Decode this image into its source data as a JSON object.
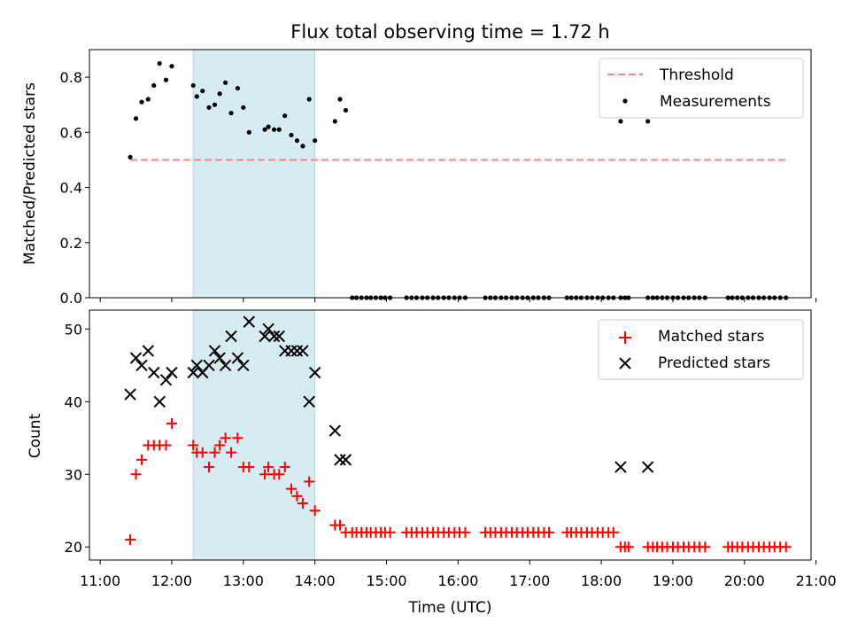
{
  "chart_data": [
    {
      "type": "scatter",
      "title": "Flux total observing time = 1.72 h",
      "xlabel": "",
      "ylabel": "Matched/Predicted stars",
      "xlim": [
        10.85,
        20.93
      ],
      "ylim": [
        0,
        0.9
      ],
      "yticks": [
        "0.0",
        "0.2",
        "0.4",
        "0.6",
        "0.8"
      ],
      "shaded_span": [
        12.3,
        14.0
      ],
      "threshold": {
        "name": "Threshold",
        "value": 0.5,
        "x_range": [
          11.42,
          20.58
        ],
        "color": "#ff8080"
      },
      "series": [
        {
          "name": "Measurements",
          "marker": "dot",
          "color": "#000000",
          "points": [
            [
              11.42,
              0.51
            ],
            [
              11.5,
              0.65
            ],
            [
              11.58,
              0.71
            ],
            [
              11.67,
              0.72
            ],
            [
              11.75,
              0.77
            ],
            [
              11.83,
              0.85
            ],
            [
              11.92,
              0.79
            ],
            [
              12.0,
              0.84
            ],
            [
              12.3,
              0.77
            ],
            [
              12.35,
              0.73
            ],
            [
              12.43,
              0.75
            ],
            [
              12.52,
              0.69
            ],
            [
              12.6,
              0.7
            ],
            [
              12.67,
              0.74
            ],
            [
              12.75,
              0.78
            ],
            [
              12.83,
              0.67
            ],
            [
              12.92,
              0.76
            ],
            [
              13.0,
              0.69
            ],
            [
              13.08,
              0.6
            ],
            [
              13.3,
              0.61
            ],
            [
              13.35,
              0.62
            ],
            [
              13.43,
              0.61
            ],
            [
              13.5,
              0.61
            ],
            [
              13.58,
              0.66
            ],
            [
              13.67,
              0.59
            ],
            [
              13.75,
              0.57
            ],
            [
              13.83,
              0.55
            ],
            [
              13.92,
              0.72
            ],
            [
              14.0,
              0.57
            ],
            [
              14.28,
              0.64
            ],
            [
              14.35,
              0.72
            ],
            [
              14.43,
              0.68
            ],
            [
              18.27,
              0.64
            ],
            [
              18.65,
              0.64
            ],
            [
              14.52,
              0
            ],
            [
              14.58,
              0
            ],
            [
              14.65,
              0
            ],
            [
              14.72,
              0
            ],
            [
              14.78,
              0
            ],
            [
              14.85,
              0
            ],
            [
              14.92,
              0
            ],
            [
              14.98,
              0
            ],
            [
              15.05,
              0
            ],
            [
              15.28,
              0
            ],
            [
              15.35,
              0
            ],
            [
              15.42,
              0
            ],
            [
              15.5,
              0
            ],
            [
              15.57,
              0
            ],
            [
              15.65,
              0
            ],
            [
              15.72,
              0
            ],
            [
              15.8,
              0
            ],
            [
              15.87,
              0
            ],
            [
              15.95,
              0
            ],
            [
              16.02,
              0
            ],
            [
              16.1,
              0
            ],
            [
              16.38,
              0
            ],
            [
              16.45,
              0
            ],
            [
              16.52,
              0
            ],
            [
              16.6,
              0
            ],
            [
              16.67,
              0
            ],
            [
              16.75,
              0
            ],
            [
              16.82,
              0
            ],
            [
              16.9,
              0
            ],
            [
              16.97,
              0
            ],
            [
              17.05,
              0
            ],
            [
              17.12,
              0
            ],
            [
              17.2,
              0
            ],
            [
              17.27,
              0
            ],
            [
              17.52,
              0
            ],
            [
              17.58,
              0
            ],
            [
              17.65,
              0
            ],
            [
              17.72,
              0
            ],
            [
              17.8,
              0
            ],
            [
              17.87,
              0
            ],
            [
              17.95,
              0
            ],
            [
              18.02,
              0
            ],
            [
              18.1,
              0
            ],
            [
              18.17,
              0
            ],
            [
              18.27,
              0
            ],
            [
              18.33,
              0
            ],
            [
              18.38,
              0
            ],
            [
              18.65,
              0
            ],
            [
              18.72,
              0
            ],
            [
              18.78,
              0
            ],
            [
              18.85,
              0
            ],
            [
              18.92,
              0
            ],
            [
              19.0,
              0
            ],
            [
              19.07,
              0
            ],
            [
              19.15,
              0
            ],
            [
              19.22,
              0
            ],
            [
              19.3,
              0
            ],
            [
              19.37,
              0
            ],
            [
              19.45,
              0
            ],
            [
              19.77,
              0
            ],
            [
              19.83,
              0
            ],
            [
              19.9,
              0
            ],
            [
              19.97,
              0
            ],
            [
              20.05,
              0
            ],
            [
              20.12,
              0
            ],
            [
              20.2,
              0
            ],
            [
              20.27,
              0
            ],
            [
              20.35,
              0
            ],
            [
              20.42,
              0
            ],
            [
              20.5,
              0
            ],
            [
              20.58,
              0
            ]
          ]
        }
      ],
      "legend": {
        "position": "top-right"
      }
    },
    {
      "type": "scatter",
      "title": "",
      "xlabel": "Time (UTC)",
      "ylabel": "Count",
      "xlim": [
        10.85,
        20.93
      ],
      "ylim": [
        18.2,
        52.6
      ],
      "yticks": [
        "20",
        "30",
        "40",
        "50"
      ],
      "xticks": [
        "11:00",
        "12:00",
        "13:00",
        "14:00",
        "15:00",
        "16:00",
        "17:00",
        "18:00",
        "19:00",
        "20:00",
        "21:00"
      ],
      "shaded_span": [
        12.3,
        14.0
      ],
      "series": [
        {
          "name": "Matched stars",
          "marker": "plus",
          "color": "#ff0000",
          "points": [
            [
              11.42,
              21
            ],
            [
              11.5,
              30
            ],
            [
              11.58,
              32
            ],
            [
              11.67,
              34
            ],
            [
              11.75,
              34
            ],
            [
              11.83,
              34
            ],
            [
              11.92,
              34
            ],
            [
              12.0,
              37
            ],
            [
              12.3,
              34
            ],
            [
              12.35,
              33
            ],
            [
              12.43,
              33
            ],
            [
              12.52,
              31
            ],
            [
              12.6,
              33
            ],
            [
              12.67,
              34
            ],
            [
              12.75,
              35
            ],
            [
              12.83,
              33
            ],
            [
              12.92,
              35
            ],
            [
              13.0,
              31
            ],
            [
              13.08,
              31
            ],
            [
              13.3,
              30
            ],
            [
              13.35,
              31
            ],
            [
              13.43,
              30
            ],
            [
              13.5,
              30
            ],
            [
              13.58,
              31
            ],
            [
              13.67,
              28
            ],
            [
              13.75,
              27
            ],
            [
              13.83,
              26
            ],
            [
              13.92,
              29
            ],
            [
              14.0,
              25
            ],
            [
              14.28,
              23
            ],
            [
              14.35,
              23
            ],
            [
              14.43,
              22
            ],
            [
              14.52,
              22
            ],
            [
              14.58,
              22
            ],
            [
              14.65,
              22
            ],
            [
              14.72,
              22
            ],
            [
              14.78,
              22
            ],
            [
              14.85,
              22
            ],
            [
              14.92,
              22
            ],
            [
              14.98,
              22
            ],
            [
              15.05,
              22
            ],
            [
              15.28,
              22
            ],
            [
              15.35,
              22
            ],
            [
              15.42,
              22
            ],
            [
              15.5,
              22
            ],
            [
              15.57,
              22
            ],
            [
              15.65,
              22
            ],
            [
              15.72,
              22
            ],
            [
              15.8,
              22
            ],
            [
              15.87,
              22
            ],
            [
              15.95,
              22
            ],
            [
              16.02,
              22
            ],
            [
              16.1,
              22
            ],
            [
              16.38,
              22
            ],
            [
              16.45,
              22
            ],
            [
              16.52,
              22
            ],
            [
              16.6,
              22
            ],
            [
              16.67,
              22
            ],
            [
              16.75,
              22
            ],
            [
              16.82,
              22
            ],
            [
              16.9,
              22
            ],
            [
              16.97,
              22
            ],
            [
              17.05,
              22
            ],
            [
              17.12,
              22
            ],
            [
              17.2,
              22
            ],
            [
              17.27,
              22
            ],
            [
              17.52,
              22
            ],
            [
              17.58,
              22
            ],
            [
              17.65,
              22
            ],
            [
              17.72,
              22
            ],
            [
              17.8,
              22
            ],
            [
              17.87,
              22
            ],
            [
              17.95,
              22
            ],
            [
              18.02,
              22
            ],
            [
              18.1,
              22
            ],
            [
              18.17,
              22
            ],
            [
              18.27,
              20
            ],
            [
              18.33,
              20
            ],
            [
              18.38,
              20
            ],
            [
              18.65,
              20
            ],
            [
              18.72,
              20
            ],
            [
              18.78,
              20
            ],
            [
              18.85,
              20
            ],
            [
              18.92,
              20
            ],
            [
              19.0,
              20
            ],
            [
              19.07,
              20
            ],
            [
              19.15,
              20
            ],
            [
              19.22,
              20
            ],
            [
              19.3,
              20
            ],
            [
              19.37,
              20
            ],
            [
              19.45,
              20
            ],
            [
              19.77,
              20
            ],
            [
              19.83,
              20
            ],
            [
              19.9,
              20
            ],
            [
              19.97,
              20
            ],
            [
              20.05,
              20
            ],
            [
              20.12,
              20
            ],
            [
              20.2,
              20
            ],
            [
              20.27,
              20
            ],
            [
              20.35,
              20
            ],
            [
              20.42,
              20
            ],
            [
              20.5,
              20
            ],
            [
              20.58,
              20
            ]
          ]
        },
        {
          "name": "Predicted stars",
          "marker": "x",
          "color": "#000000",
          "points": [
            [
              11.42,
              41
            ],
            [
              11.5,
              46
            ],
            [
              11.58,
              45
            ],
            [
              11.67,
              47
            ],
            [
              11.75,
              44
            ],
            [
              11.83,
              40
            ],
            [
              11.92,
              43
            ],
            [
              12.0,
              44
            ],
            [
              12.3,
              44
            ],
            [
              12.35,
              45
            ],
            [
              12.43,
              44
            ],
            [
              12.52,
              45
            ],
            [
              12.6,
              47
            ],
            [
              12.67,
              46
            ],
            [
              12.75,
              45
            ],
            [
              12.83,
              49
            ],
            [
              12.92,
              46
            ],
            [
              13.0,
              45
            ],
            [
              13.08,
              51
            ],
            [
              13.3,
              49
            ],
            [
              13.35,
              50
            ],
            [
              13.43,
              49
            ],
            [
              13.5,
              49
            ],
            [
              13.58,
              47
            ],
            [
              13.67,
              47
            ],
            [
              13.75,
              47
            ],
            [
              13.83,
              47
            ],
            [
              13.92,
              40
            ],
            [
              14.0,
              44
            ],
            [
              14.28,
              36
            ],
            [
              14.35,
              32
            ],
            [
              14.43,
              32
            ],
            [
              18.27,
              31
            ],
            [
              18.65,
              31
            ]
          ]
        }
      ],
      "legend": {
        "position": "top-right"
      }
    }
  ]
}
